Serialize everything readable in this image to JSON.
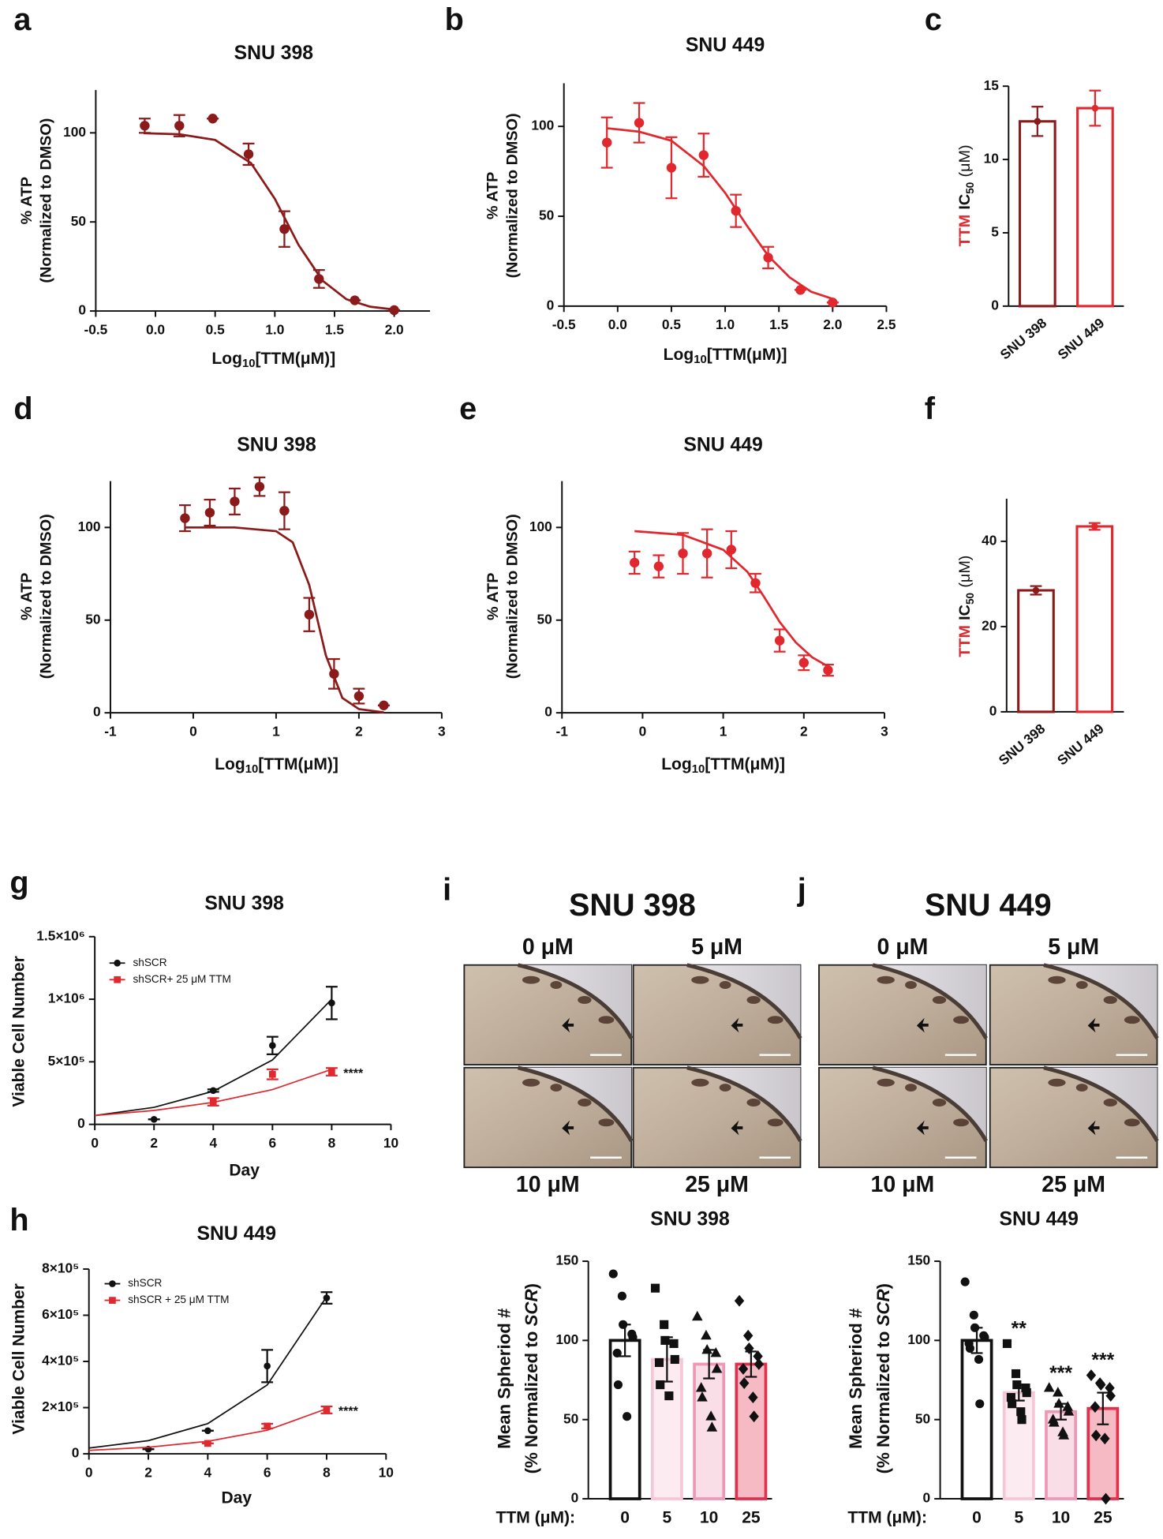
{
  "chart_data": [
    {
      "type": "dose",
      "panel": "a",
      "title": "SNU 398",
      "ylabel": [
        "% ATP",
        "(Normalized to DMSO)"
      ],
      "xlabel": {
        "text": "Log",
        "sub": "10",
        "rest": "[TTM(μM)]"
      },
      "color": "#8b1a1a",
      "x": [
        -0.09,
        0.2,
        0.48,
        0.78,
        1.08,
        1.37,
        1.67,
        2.0
      ],
      "values": [
        104,
        104,
        108,
        88,
        46,
        18,
        6,
        0.5
      ],
      "errors": [
        4,
        6,
        0,
        6,
        10,
        5,
        0,
        0
      ],
      "fit_x": [
        -0.1,
        0.2,
        0.5,
        0.8,
        1.0,
        1.1,
        1.2,
        1.4,
        1.6,
        1.8,
        2.0
      ],
      "fit": [
        99.8,
        99.2,
        96,
        83,
        63,
        50,
        37,
        17,
        6.6,
        2.4,
        0.8
      ],
      "xlim": [
        -0.5,
        2.3
      ],
      "xticks": [
        -0.5,
        {
          "value": 0,
          "label": "0.0"
        },
        0.5,
        {
          "value": 1,
          "label": "1.0"
        },
        1.5,
        {
          "value": 2,
          "label": "2.0"
        }
      ],
      "ylim": [
        0,
        124
      ],
      "yticks": [
        0,
        50,
        100
      ]
    },
    {
      "type": "dose",
      "panel": "b",
      "title": "SNU 449",
      "ylabel": [
        "% ATP",
        "(Normalized to DMSO)"
      ],
      "xlabel": {
        "text": "Log",
        "sub": "10",
        "rest": "[TTM(μM)]"
      },
      "color": "#e0282e",
      "x": [
        -0.1,
        0.2,
        0.5,
        0.8,
        1.1,
        1.4,
        1.7,
        2.0
      ],
      "values": [
        91,
        102,
        77,
        84,
        53,
        27,
        9,
        2
      ],
      "errors": [
        14,
        11,
        17,
        12,
        9,
        6,
        0,
        0
      ],
      "fit_x": [
        -0.1,
        0.2,
        0.5,
        0.8,
        1.0,
        1.2,
        1.4,
        1.6,
        1.8,
        2.0
      ],
      "fit": [
        99,
        97,
        92,
        78,
        63,
        45,
        28,
        16,
        8,
        4
      ],
      "xlim": [
        -0.5,
        2.5
      ],
      "xticks": [
        -0.5,
        {
          "value": 0,
          "label": "0.0"
        },
        0.5,
        {
          "value": 1,
          "label": "1.0"
        },
        1.5,
        {
          "value": 2,
          "label": "2.0"
        },
        2.5
      ],
      "ylim": [
        0,
        124
      ],
      "yticks": [
        0,
        50,
        100
      ]
    },
    {
      "type": "bar",
      "panel": "c",
      "ylabel": {
        "drug": "TTM",
        "text": "IC",
        "sub": "50",
        "unit": "(μM)"
      },
      "categories": [
        "SNU 398",
        "SNU 449"
      ],
      "values": [
        12.6,
        13.5
      ],
      "errors": [
        1.0,
        1.2
      ],
      "colors": [
        "#8b1a1a",
        "#e0282e"
      ],
      "ylim": [
        0,
        15
      ],
      "yticks": [
        0,
        5,
        10,
        15
      ]
    },
    {
      "type": "dose",
      "panel": "d",
      "title": "SNU 398",
      "ylabel": [
        "% ATP",
        "(Normalized to DMSO)"
      ],
      "xlabel": {
        "text": "Log",
        "sub": "10",
        "rest": "[TTM(μM)]"
      },
      "color": "#8b1a1a",
      "x": [
        -0.1,
        0.2,
        0.5,
        0.8,
        1.1,
        1.4,
        1.7,
        2.0,
        2.3
      ],
      "values": [
        105,
        108,
        114,
        122,
        109,
        53,
        21,
        9,
        4
      ],
      "errors": [
        7,
        7,
        7,
        5,
        10,
        9,
        8,
        4,
        0
      ],
      "fit_x": [
        -0.1,
        0.5,
        1.0,
        1.2,
        1.4,
        1.5,
        1.6,
        1.8,
        2.0,
        2.3
      ],
      "fit": [
        100,
        100,
        98,
        92,
        69,
        50,
        31,
        8,
        2,
        0.2
      ],
      "xlim": [
        -1,
        3
      ],
      "xticks": [
        -1,
        0,
        1,
        2,
        3
      ],
      "ylim": [
        0,
        125
      ],
      "yticks": [
        0,
        50,
        100
      ]
    },
    {
      "type": "dose",
      "panel": "e",
      "title": "SNU 449",
      "ylabel": [
        "% ATP",
        "(Normalized to DMSO)"
      ],
      "xlabel": {
        "text": "Log",
        "sub": "10",
        "rest": "[TTM(μM)]"
      },
      "color": "#e0282e",
      "x": [
        -0.1,
        0.2,
        0.5,
        0.8,
        1.1,
        1.4,
        1.7,
        2.0,
        2.3
      ],
      "values": [
        81,
        79,
        86,
        86,
        88,
        70,
        39,
        27,
        23
      ],
      "errors": [
        6,
        6,
        11,
        13,
        10,
        5,
        6,
        4,
        3
      ],
      "fit_x": [
        -0.1,
        0.5,
        1.0,
        1.3,
        1.5,
        1.7,
        1.9,
        2.1,
        2.3
      ],
      "fit": [
        98,
        96,
        88,
        76,
        63,
        49,
        38,
        30,
        25
      ],
      "xlim": [
        -1,
        3
      ],
      "xticks": [
        -1,
        0,
        1,
        2,
        3
      ],
      "ylim": [
        0,
        125
      ],
      "yticks": [
        0,
        50,
        100
      ]
    },
    {
      "type": "bar",
      "panel": "f",
      "ylabel": {
        "drug": "TTM",
        "text": "IC",
        "sub": "50",
        "unit": "(μM)"
      },
      "categories": [
        "SNU 398",
        "SNU 449"
      ],
      "values": [
        28.5,
        43.5
      ],
      "errors": [
        1,
        0.8
      ],
      "colors": [
        "#8b1a1a",
        "#e0282e"
      ],
      "ylim": [
        0,
        50
      ],
      "yticks": [
        0,
        20,
        40
      ]
    },
    {
      "type": "growth",
      "panel": "g",
      "title": "SNU 398",
      "ylabel": "Viable Cell Number",
      "xlabel": "Day",
      "annotation": "****",
      "series": [
        {
          "name": "shSCR",
          "color": "#111111",
          "x": [
            2,
            4,
            6,
            8
          ],
          "values": [
            40000,
            270000,
            630000,
            970000
          ],
          "errors": [
            0,
            10000,
            70000,
            130000
          ],
          "fit_x": [
            0,
            2,
            4,
            6,
            8
          ],
          "fit": [
            70000,
            136000,
            265000,
            515000,
            1000000
          ]
        },
        {
          "name": "shSCR+ 25 μM TTM",
          "color": "#e0282e",
          "x": [
            4,
            6,
            8
          ],
          "values": [
            180000,
            400000,
            420000
          ],
          "errors": [
            30000,
            40000,
            30000
          ],
          "fit_x": [
            0,
            2,
            4,
            6,
            8
          ],
          "fit": [
            70000,
            111000,
            176000,
            278000,
            440000
          ]
        }
      ],
      "xlim": [
        0,
        10
      ],
      "xticks": [
        0,
        2,
        4,
        6,
        8,
        10
      ],
      "ylim": [
        0,
        1500000
      ],
      "yticks": [
        0,
        {
          "value": 500000,
          "label": "5×10⁵"
        },
        {
          "value": 1000000,
          "label": "1×10⁶"
        },
        {
          "value": 1500000,
          "label": "1.5×10⁶"
        }
      ]
    },
    {
      "type": "growth",
      "panel": "h",
      "title": "SNU 449",
      "ylabel": "Viable Cell Number",
      "xlabel": "Day",
      "annotation": "****",
      "series": [
        {
          "name": "shSCR",
          "color": "#111111",
          "x": [
            2,
            4,
            6,
            8
          ],
          "values": [
            20000,
            100000,
            380000,
            675000
          ],
          "errors": [
            0,
            0,
            70000,
            25000
          ],
          "fit_x": [
            0,
            2,
            4,
            6,
            8
          ],
          "fit": [
            25000,
            57000,
            131000,
            298000,
            680000
          ]
        },
        {
          "name": "shSCR + 25 μM TTM",
          "color": "#e0282e",
          "x": [
            4,
            6,
            8
          ],
          "values": [
            45000,
            120000,
            190000
          ],
          "errors": [
            0,
            10000,
            15000
          ],
          "fit_x": [
            0,
            2,
            4,
            6,
            8
          ],
          "fit": [
            15000,
            28500,
            54000,
            102000,
            195000
          ]
        }
      ],
      "xlim": [
        0,
        10
      ],
      "xticks": [
        0,
        2,
        4,
        6,
        8,
        10
      ],
      "ylim": [
        0,
        800000
      ],
      "yticks": [
        0,
        {
          "value": 200000,
          "label": "2×10⁵"
        },
        {
          "value": 400000,
          "label": "4×10⁵"
        },
        {
          "value": 600000,
          "label": "6×10⁵"
        },
        {
          "value": 800000,
          "label": "8×10⁵"
        }
      ]
    },
    {
      "type": "barscatter",
      "title": "SNU 398",
      "ylabel": {
        "line1": "Mean Spheriod #",
        "pre": "(% Normalized to",
        "em": "SCR",
        "post": ")"
      },
      "xlabel": "TTM (μM):",
      "categories": [
        "0",
        "5",
        "10",
        "25"
      ],
      "values": [
        100,
        88,
        85,
        85
      ],
      "errors": [
        10,
        14,
        9,
        8
      ],
      "colors": [
        "#111111",
        "#f7c6d6",
        "#ee98b6",
        "#e2304c"
      ],
      "markers": [
        "circle",
        "square",
        "triangle",
        "diamond"
      ],
      "points": [
        [
          142,
          128,
          110,
          104,
          102,
          92,
          72,
          52
        ],
        [
          133,
          110,
          100,
          98,
          88,
          86,
          72,
          65
        ],
        [
          115,
          103,
          94,
          92,
          82,
          70,
          64,
          52,
          45
        ],
        [
          125,
          103,
          95,
          90,
          85,
          82,
          73,
          64,
          52
        ]
      ],
      "ylim": [
        0,
        150
      ],
      "yticks": [
        0,
        50,
        100,
        150
      ]
    },
    {
      "type": "barscatter",
      "title": "SNU 449",
      "ylabel": {
        "line1": "Mean Spheriod #",
        "pre": "(% Normalized to",
        "em": "SCR",
        "post": ")"
      },
      "xlabel": "TTM (μM):",
      "categories": [
        "0",
        "5",
        "10",
        "25"
      ],
      "values": [
        100,
        67,
        55,
        57
      ],
      "errors": [
        8,
        5,
        5,
        10
      ],
      "colors": [
        "#111111",
        "#f7c6d6",
        "#ee98b6",
        "#e2304c"
      ],
      "markers": [
        "circle",
        "square",
        "triangle",
        "diamond"
      ],
      "points": [
        [
          137,
          116,
          108,
          103,
          102,
          98,
          95,
          88,
          60
        ],
        [
          98,
          79,
          72,
          70,
          67,
          64,
          60,
          55,
          50
        ],
        [
          70,
          67,
          60,
          58,
          55,
          50,
          48,
          42,
          40
        ],
        [
          78,
          73,
          72,
          70,
          65,
          58,
          40,
          38,
          0
        ]
      ],
      "annotations": [
        null,
        "**",
        "***",
        "***"
      ],
      "ylim": [
        0,
        150
      ],
      "yticks": [
        0,
        50,
        100,
        150
      ]
    }
  ],
  "micrographs": [
    {
      "panel": "i",
      "title": "SNU 398",
      "doses": [
        "0 μM",
        "5 μM",
        "10 μM",
        "25 μM"
      ]
    },
    {
      "panel": "j",
      "title": "SNU 449",
      "doses": [
        "0 μM",
        "5 μM",
        "10 μM",
        "25 μM"
      ]
    }
  ]
}
